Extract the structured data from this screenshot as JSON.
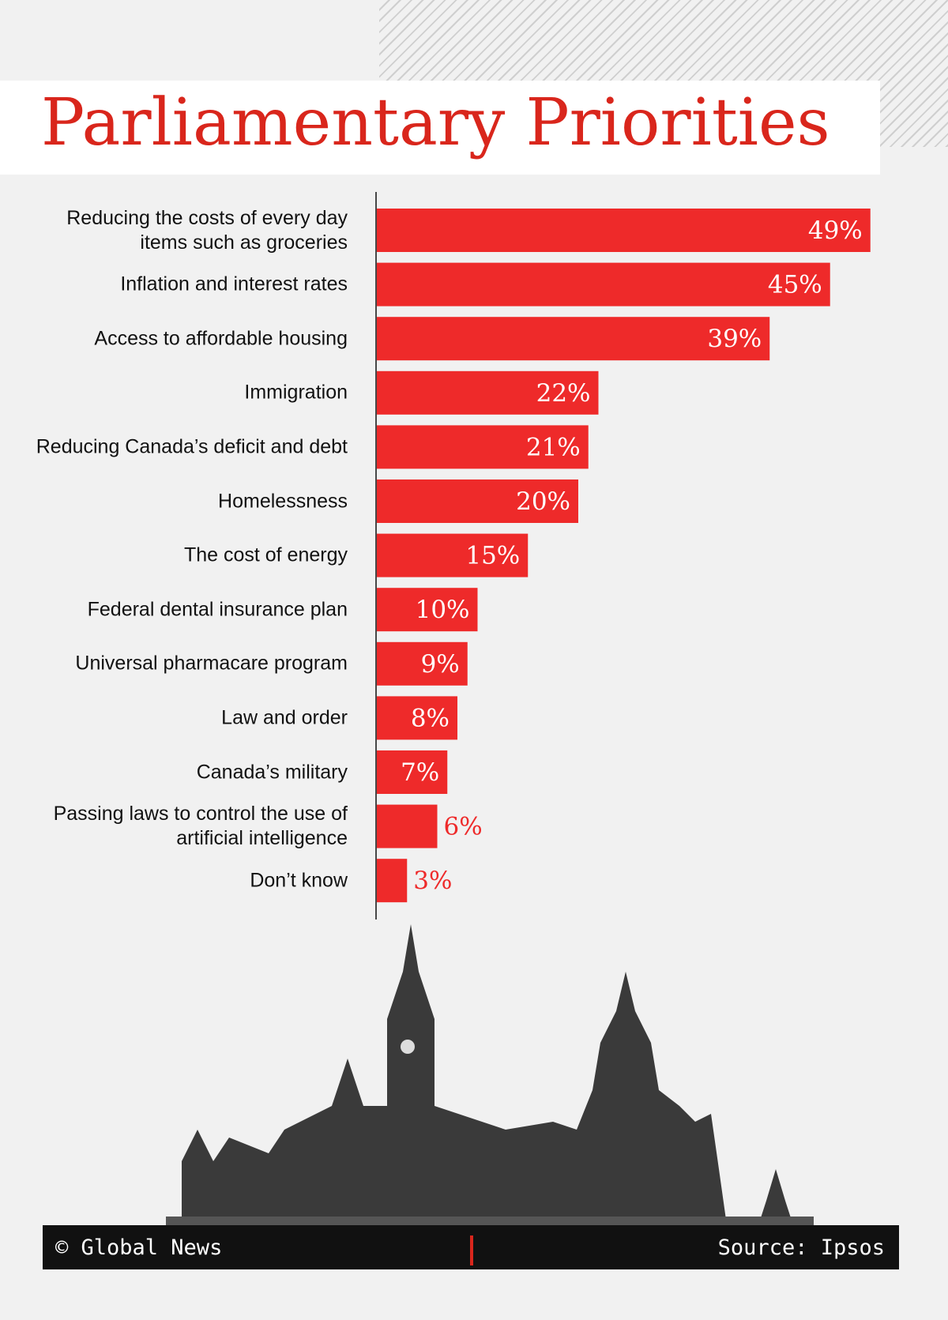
{
  "chart_data": {
    "type": "bar",
    "orientation": "horizontal",
    "title": "Parliamentary Priorities",
    "categories": [
      "Reducing the costs of every day items such as groceries",
      "Inflation and interest rates",
      "Access to affordable housing",
      "Immigration",
      "Reducing Canada’s deficit and debt",
      "Homelessness",
      "The cost of energy",
      "Federal dental insurance plan",
      "Universal pharmacare program",
      "Law and order",
      "Canada’s military",
      "Passing laws to control the use of artificial intelligence",
      "Don’t know"
    ],
    "values": [
      49,
      45,
      39,
      22,
      21,
      20,
      15,
      10,
      9,
      8,
      7,
      6,
      3
    ],
    "value_labels": [
      "49%",
      "45%",
      "39%",
      "22%",
      "21%",
      "20%",
      "15%",
      "10%",
      "9%",
      "8%",
      "7%",
      "6%",
      "3%"
    ],
    "color": "#ee2a2a",
    "credit": "© Global News",
    "source": "Source: Ipsos"
  }
}
